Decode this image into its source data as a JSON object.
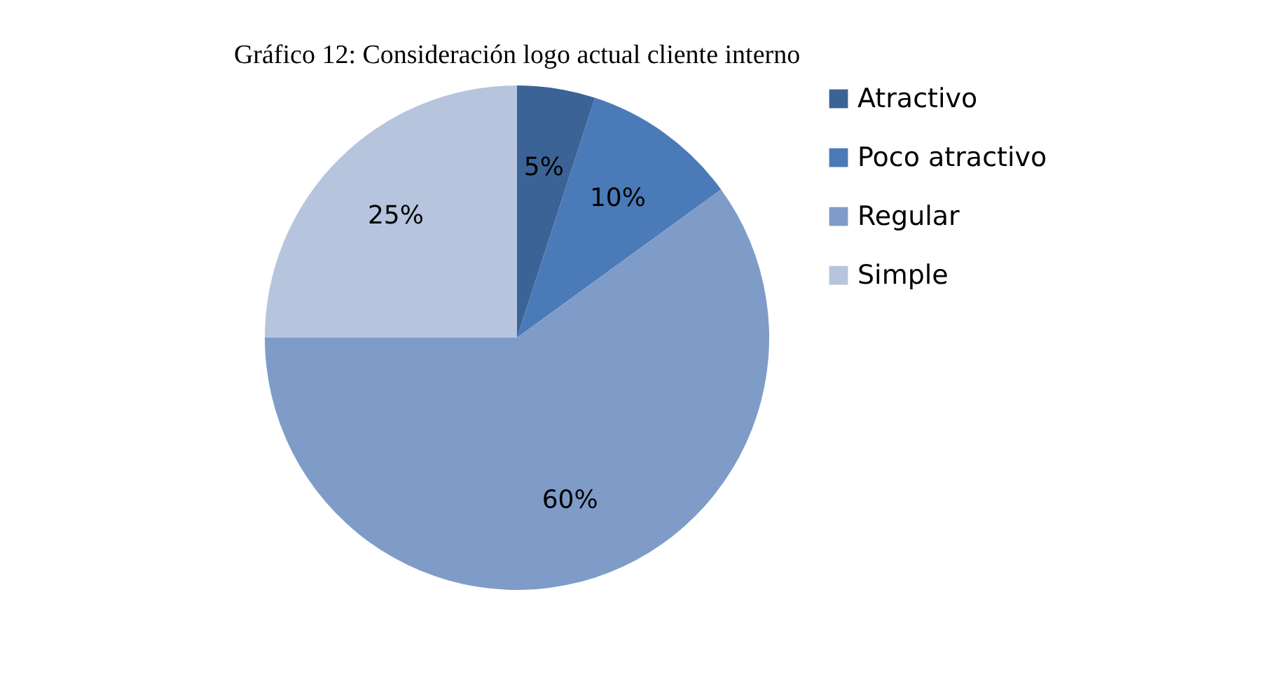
{
  "chart_data": {
    "type": "pie",
    "title": "Gráfico 12: Consideración logo actual cliente interno",
    "categories": [
      "Atractivo",
      "Poco atractivo",
      "Regular",
      "Simple"
    ],
    "values": [
      5,
      10,
      60,
      25
    ],
    "value_labels": [
      "5%",
      "10%",
      "60%",
      "25%"
    ],
    "colors": [
      "#3c6396",
      "#4a7ab8",
      "#7f9cc8",
      "#b6c4de"
    ],
    "legend": "right"
  }
}
